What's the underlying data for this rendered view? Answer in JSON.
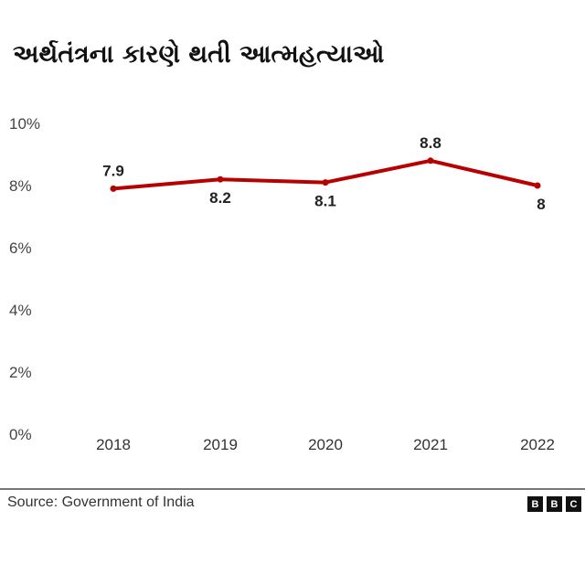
{
  "chart_data": {
    "type": "line",
    "title": "અર્થતંત્રના કારણે થતી આત્મહત્યાઓ",
    "categories": [
      "2018",
      "2019",
      "2020",
      "2021",
      "2022"
    ],
    "series": [
      {
        "values": [
          7.9,
          8.2,
          8.1,
          8.8,
          8
        ],
        "labels": [
          "7.9",
          "8.2",
          "8.1",
          "8.8",
          "8"
        ],
        "color": "#b80000"
      }
    ],
    "ylim": [
      0,
      10
    ],
    "yticks": [
      0,
      2,
      4,
      6,
      8,
      10
    ],
    "ytick_labels": [
      "0%",
      "2%",
      "4%",
      "6%",
      "8%",
      "10%"
    ],
    "grid": false,
    "xlabel": "",
    "ylabel": ""
  },
  "footer": {
    "source": "Source: Government of India",
    "logo": "BBC"
  }
}
